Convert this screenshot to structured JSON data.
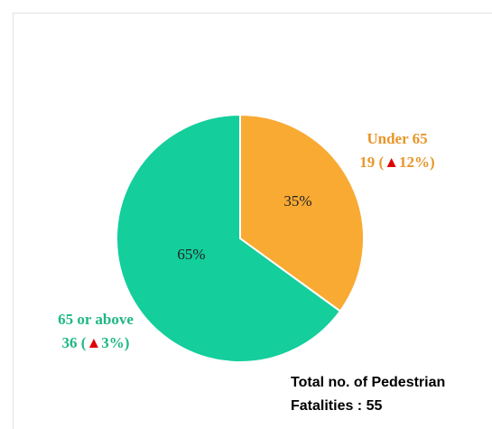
{
  "chart_data": {
    "type": "pie",
    "categories": [
      "Under 65",
      "65 or above"
    ],
    "values": [
      35,
      65
    ],
    "value_labels": [
      "35%",
      "65%"
    ],
    "colors": [
      "#F9AA33",
      "#14CE9C"
    ],
    "label_colors": [
      "#E8962A",
      "#1FB882"
    ],
    "detail_parts": [
      [
        "19 (",
        "▲",
        "12%)"
      ],
      [
        "36 (",
        "▲",
        "3%)"
      ]
    ],
    "note": [
      "Total no. of Pedestrian",
      "Fatalities : 55"
    ]
  }
}
